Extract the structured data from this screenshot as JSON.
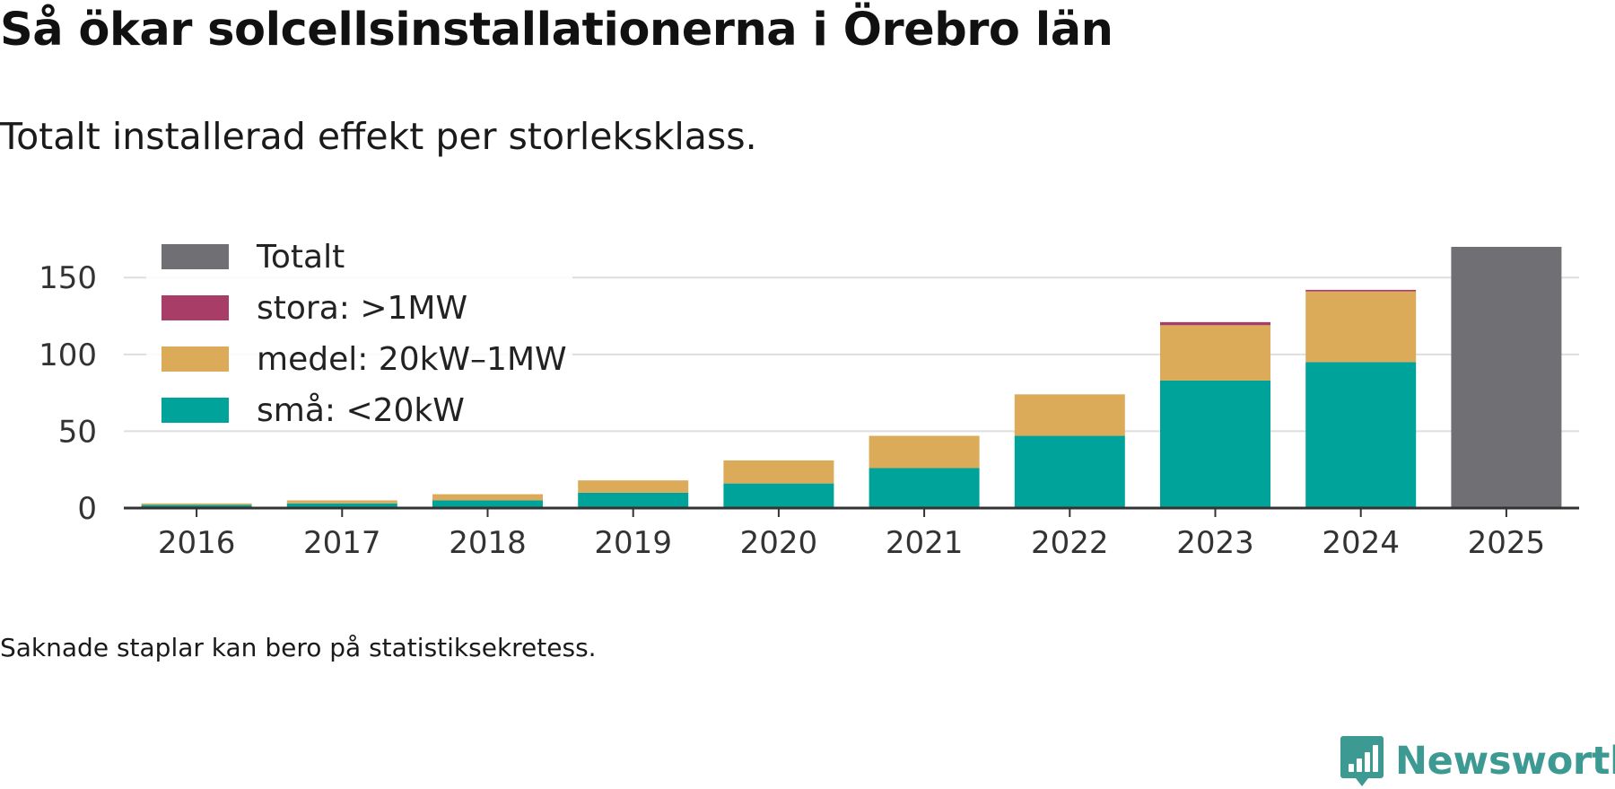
{
  "header": {
    "title": "Så ökar solcellsinstallationerna i Örebro län",
    "subtitle": "Totalt installerad effekt per storleksklass."
  },
  "footer": {
    "note": "Saknade staplar kan bero på statistiksekretess.",
    "brand": "Newsworthy",
    "brand_color": "#3d9a93"
  },
  "chart_data": {
    "type": "bar",
    "stacked": true,
    "title": "Så ökar solcellsinstallationerna i Örebro län",
    "subtitle": "Totalt installerad effekt per storleksklass.",
    "xlabel": "",
    "ylabel": "",
    "categories": [
      "2016",
      "2017",
      "2018",
      "2019",
      "2020",
      "2021",
      "2022",
      "2023",
      "2024",
      "2025"
    ],
    "series": [
      {
        "name": "små: <20kW",
        "color": "#00a39a",
        "values": [
          2,
          3,
          5,
          10,
          16,
          26,
          47,
          83,
          95,
          null
        ]
      },
      {
        "name": "medel: 20kW–1MW",
        "color": "#dbab5a",
        "values": [
          1,
          2,
          4,
          8,
          15,
          21,
          27,
          36,
          46,
          null
        ]
      },
      {
        "name": "stora: >1MW",
        "color": "#a83d68",
        "values": [
          0,
          0,
          0,
          0,
          0,
          0,
          0,
          2,
          1,
          null
        ]
      },
      {
        "name": "Totalt",
        "color": "#706f74",
        "values": [
          null,
          null,
          null,
          null,
          null,
          null,
          null,
          null,
          null,
          170
        ]
      }
    ],
    "legend_order": [
      "Totalt",
      "stora: >1MW",
      "medel: 20kW–1MW",
      "små: <20kW"
    ],
    "legend_position": "top-left",
    "yticks": [
      0,
      50,
      100,
      150
    ],
    "ylim": [
      0,
      170
    ],
    "grid": true
  }
}
